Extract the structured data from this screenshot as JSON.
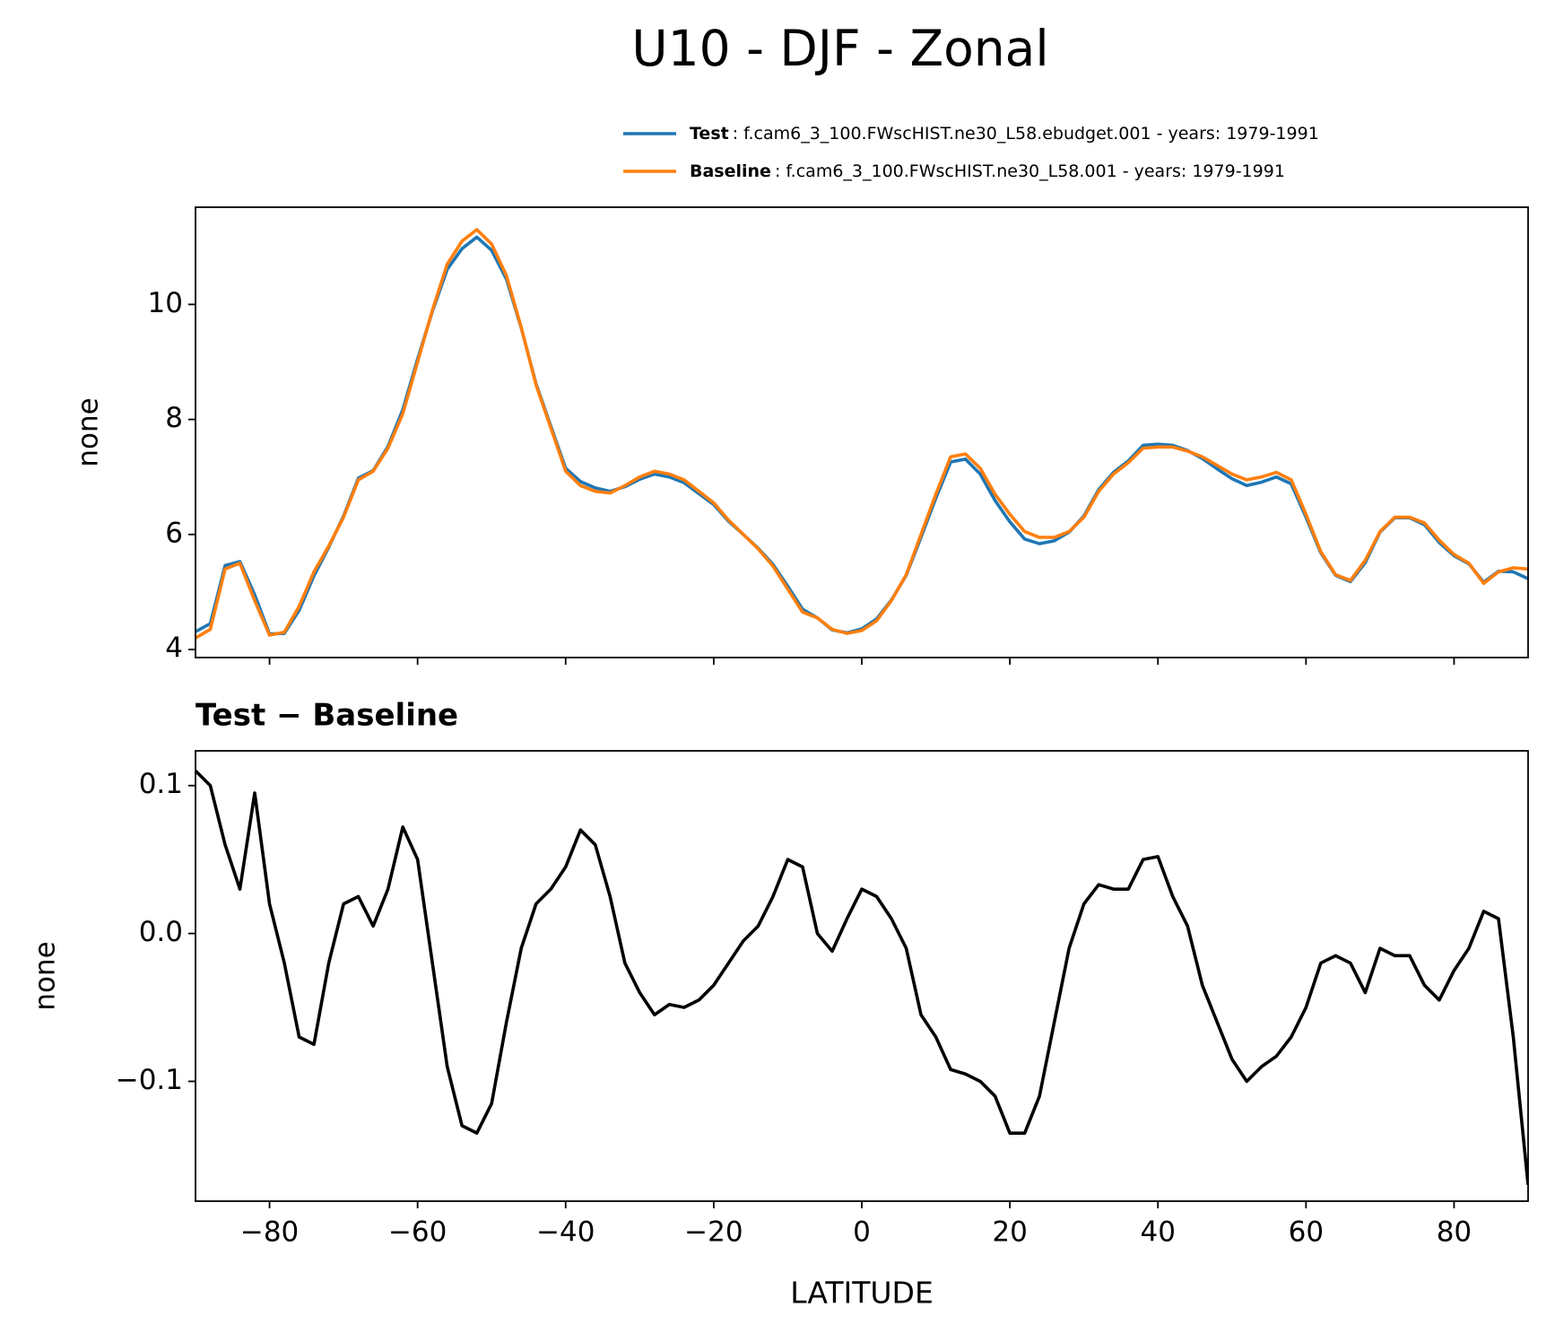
{
  "title": "U10 - DJF - Zonal",
  "chart_data": [
    {
      "type": "line",
      "ylabel": "none",
      "x": [
        -90,
        -88,
        -86,
        -84,
        -82,
        -80,
        -78,
        -76,
        -74,
        -72,
        -70,
        -68,
        -66,
        -64,
        -62,
        -60,
        -58,
        -56,
        -54,
        -52,
        -50,
        -48,
        -46,
        -44,
        -42,
        -40,
        -38,
        -36,
        -34,
        -32,
        -30,
        -28,
        -26,
        -24,
        -22,
        -20,
        -18,
        -16,
        -14,
        -12,
        -10,
        -8,
        -6,
        -4,
        -2,
        0,
        2,
        4,
        6,
        8,
        10,
        12,
        14,
        16,
        18,
        20,
        22,
        24,
        26,
        28,
        30,
        32,
        34,
        36,
        38,
        40,
        42,
        44,
        46,
        48,
        50,
        52,
        54,
        56,
        58,
        60,
        62,
        64,
        66,
        68,
        70,
        72,
        74,
        76,
        78,
        80,
        82,
        84,
        86,
        88,
        90
      ],
      "series": [
        {
          "name": "Test",
          "case": ": f.cam6_3_100.FWscHIST.ne30_L58.ebudget.001 - years: 1979-1991",
          "color": "#1f77b4",
          "values": [
            4.31,
            4.45,
            5.46,
            5.53,
            4.95,
            4.27,
            4.28,
            4.68,
            5.28,
            5.78,
            6.32,
            6.98,
            7.11,
            7.53,
            8.17,
            9.05,
            9.88,
            10.61,
            10.97,
            11.17,
            10.94,
            10.44,
            9.59,
            8.62,
            7.88,
            7.15,
            6.92,
            6.81,
            6.75,
            6.83,
            6.96,
            7.05,
            7.0,
            6.9,
            6.71,
            6.52,
            6.23,
            6.0,
            5.76,
            5.48,
            5.1,
            4.7,
            4.55,
            4.34,
            4.29,
            4.36,
            4.53,
            4.86,
            5.29,
            5.95,
            6.63,
            7.26,
            7.31,
            7.05,
            6.59,
            6.22,
            5.92,
            5.84,
            5.89,
            6.04,
            6.32,
            6.78,
            7.08,
            7.28,
            7.55,
            7.57,
            7.55,
            7.46,
            7.32,
            7.14,
            6.97,
            6.85,
            6.91,
            7.0,
            6.88,
            6.3,
            5.68,
            5.29,
            5.18,
            5.51,
            6.04,
            6.29,
            6.29,
            6.17,
            5.86,
            5.63,
            5.49,
            5.17,
            5.36,
            5.35,
            5.23
          ]
        },
        {
          "name": "Baseline",
          "case": ": f.cam6_3_100.FWscHIST.ne30_L58.001 - years: 1979-1991",
          "color": "#ff7f0e",
          "values": [
            4.2,
            4.35,
            5.4,
            5.5,
            4.85,
            4.25,
            4.3,
            4.75,
            5.35,
            5.8,
            6.3,
            6.95,
            7.1,
            7.5,
            8.1,
            9.0,
            9.9,
            10.7,
            11.1,
            11.3,
            11.05,
            10.5,
            9.6,
            8.6,
            7.85,
            7.1,
            6.85,
            6.75,
            6.72,
            6.85,
            7.0,
            7.1,
            7.05,
            6.95,
            6.75,
            6.55,
            6.25,
            6.0,
            5.75,
            5.45,
            5.05,
            4.65,
            4.55,
            4.35,
            4.28,
            4.33,
            4.5,
            4.85,
            5.3,
            6.0,
            6.7,
            7.35,
            7.4,
            7.15,
            6.7,
            6.35,
            6.05,
            5.95,
            5.95,
            6.05,
            6.3,
            6.75,
            7.05,
            7.25,
            7.5,
            7.52,
            7.52,
            7.45,
            7.35,
            7.2,
            7.05,
            6.95,
            7.0,
            7.08,
            6.95,
            6.35,
            5.7,
            5.3,
            5.2,
            5.55,
            6.05,
            6.3,
            6.3,
            6.2,
            5.9,
            5.65,
            5.5,
            5.15,
            5.35,
            5.42,
            5.4
          ]
        }
      ],
      "xlim": [
        -90,
        90
      ],
      "xticks": [
        {
          "value": -80,
          "label": "−80"
        },
        {
          "value": -60,
          "label": "−60"
        },
        {
          "value": -40,
          "label": "−40"
        },
        {
          "value": -20,
          "label": "−20"
        },
        0,
        20,
        40,
        60,
        80
      ],
      "show_xticklabels": false,
      "ylim": [
        3.86,
        11.69
      ],
      "yticks": [
        4,
        6,
        8,
        10
      ],
      "grid": false,
      "legend": "upper right outside"
    },
    {
      "type": "line",
      "title": "Test − Baseline",
      "ylabel": "none",
      "xlabel": "LATITUDE",
      "x": [
        -90,
        -88,
        -86,
        -84,
        -82,
        -80,
        -78,
        -76,
        -74,
        -72,
        -70,
        -68,
        -66,
        -64,
        -62,
        -60,
        -58,
        -56,
        -54,
        -52,
        -50,
        -48,
        -46,
        -44,
        -42,
        -40,
        -38,
        -36,
        -34,
        -32,
        -30,
        -28,
        -26,
        -24,
        -22,
        -20,
        -18,
        -16,
        -14,
        -12,
        -10,
        -8,
        -6,
        -4,
        -2,
        0,
        2,
        4,
        6,
        8,
        10,
        12,
        14,
        16,
        18,
        20,
        22,
        24,
        26,
        28,
        30,
        32,
        34,
        36,
        38,
        40,
        42,
        44,
        46,
        48,
        50,
        52,
        54,
        56,
        58,
        60,
        62,
        64,
        66,
        68,
        70,
        72,
        74,
        76,
        78,
        80,
        82,
        84,
        86,
        88,
        90
      ],
      "series": [
        {
          "color": "#000000",
          "values": [
            0.11,
            0.1,
            0.06,
            0.03,
            0.095,
            0.02,
            -0.02,
            -0.07,
            -0.075,
            -0.02,
            0.02,
            0.025,
            0.005,
            0.03,
            0.072,
            0.05,
            -0.02,
            -0.09,
            -0.13,
            -0.135,
            -0.115,
            -0.06,
            -0.01,
            0.02,
            0.03,
            0.045,
            0.07,
            0.06,
            0.025,
            -0.02,
            -0.04,
            -0.055,
            -0.048,
            -0.05,
            -0.045,
            -0.035,
            -0.02,
            -0.005,
            0.005,
            0.025,
            0.05,
            0.045,
            0.0,
            -0.012,
            0.01,
            0.03,
            0.025,
            0.01,
            -0.01,
            -0.055,
            -0.07,
            -0.092,
            -0.095,
            -0.1,
            -0.11,
            -0.135,
            -0.135,
            -0.11,
            -0.06,
            -0.01,
            0.02,
            0.033,
            0.03,
            0.03,
            0.05,
            0.052,
            0.025,
            0.005,
            -0.035,
            -0.06,
            -0.085,
            -0.1,
            -0.09,
            -0.083,
            -0.07,
            -0.05,
            -0.02,
            -0.015,
            -0.02,
            -0.04,
            -0.01,
            -0.015,
            -0.015,
            -0.035,
            -0.045,
            -0.025,
            -0.01,
            0.015,
            0.01,
            -0.07,
            -0.17
          ]
        }
      ],
      "xlim": [
        -90,
        90
      ],
      "xticks": [
        {
          "value": -80,
          "label": "−80"
        },
        {
          "value": -60,
          "label": "−60"
        },
        {
          "value": -40,
          "label": "−40"
        },
        {
          "value": -20,
          "label": "−20"
        },
        0,
        20,
        40,
        60,
        80
      ],
      "show_xticklabels": true,
      "ylim": [
        -0.181,
        0.1235
      ],
      "yticks": [
        {
          "value": -0.1,
          "label": "−0.1"
        },
        {
          "value": 0,
          "label": "0.0"
        },
        0.1
      ],
      "grid": false
    }
  ]
}
